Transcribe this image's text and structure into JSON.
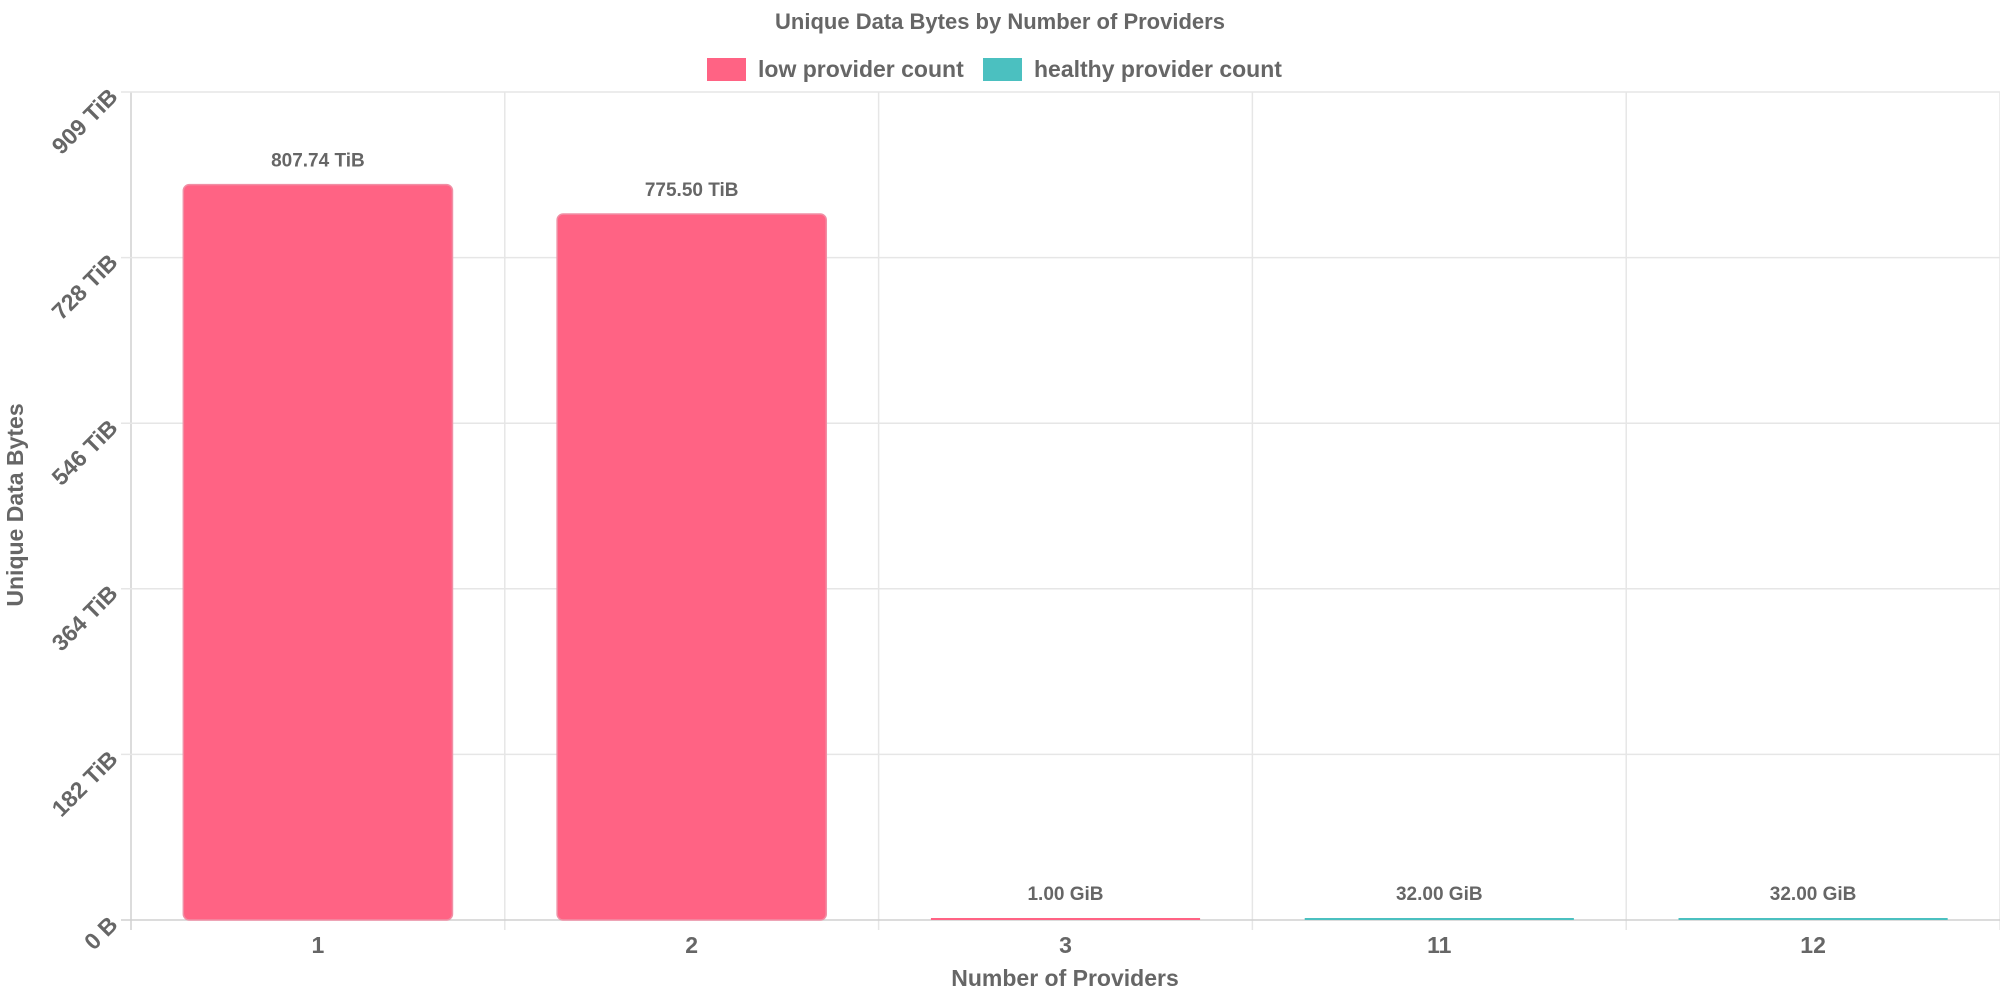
{
  "chart_data": {
    "type": "bar",
    "title": "Unique Data Bytes by Number of Providers",
    "xlabel": "Number of Providers",
    "ylabel": "Unique Data Bytes",
    "categories": [
      "1",
      "2",
      "3",
      "11",
      "12"
    ],
    "values_tib": [
      807.74,
      775.5,
      0.0009765625,
      0.03125,
      0.03125
    ],
    "data_labels": [
      "807.74 TiB",
      "775.50 TiB",
      "1.00 GiB",
      "32.00 GiB",
      "32.00 GiB"
    ],
    "bar_series": [
      "low provider count",
      "low provider count",
      "low provider count",
      "healthy provider count",
      "healthy provider count"
    ],
    "series": [
      {
        "name": "low provider count",
        "color": "#ff6384"
      },
      {
        "name": "healthy provider count",
        "color": "#4bc0c0"
      }
    ],
    "yticks": [
      "0 B",
      "182 TiB",
      "364 TiB",
      "546 TiB",
      "728 TiB",
      "909 TiB"
    ],
    "ytick_values_tib": [
      0,
      181.9,
      363.8,
      545.7,
      727.6,
      909.5
    ],
    "ylim_tib": [
      0,
      909.5
    ],
    "legend_position": "top-center",
    "grid": true
  }
}
